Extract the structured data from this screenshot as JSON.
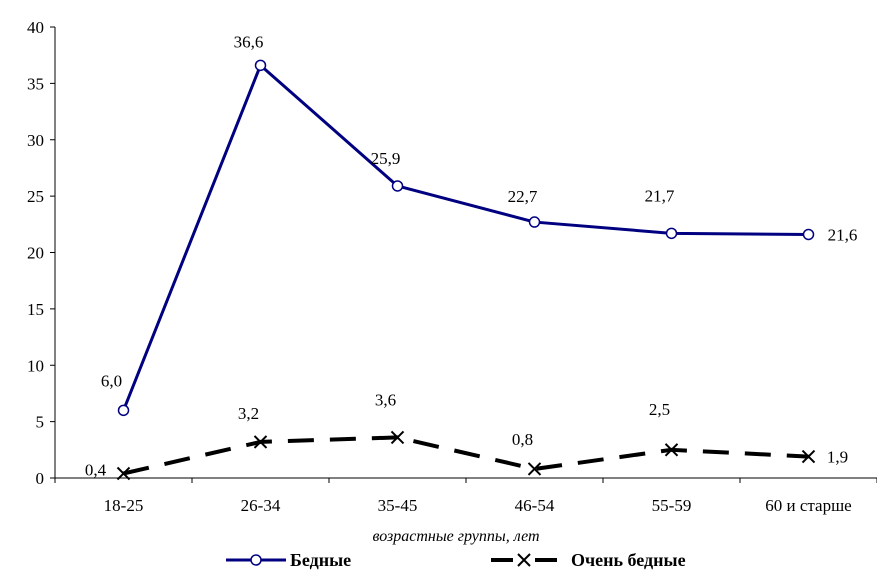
{
  "chart_data": {
    "type": "line",
    "title": "",
    "xlabel": "возрастные группы, лет",
    "ylabel": "",
    "ylim": [
      0,
      40
    ],
    "yticks": [
      "0",
      "5",
      "10",
      "15",
      "20",
      "25",
      "30",
      "35",
      "40"
    ],
    "categories": [
      "18-25",
      "26-34",
      "35-45",
      "46-54",
      "55-59",
      "60  и старше"
    ],
    "legend_position": "bottom",
    "grid": false,
    "series": [
      {
        "name": "Бедные",
        "values": [
          6.0,
          36.6,
          25.9,
          22.7,
          21.7,
          21.6
        ],
        "labels": [
          "6,0",
          "36,6",
          "25,9",
          "22,7",
          "21,7",
          "21,6"
        ],
        "color": "#000080",
        "style": "solid",
        "marker": "circle"
      },
      {
        "name": "Очень бедные",
        "values": [
          0.4,
          3.2,
          3.6,
          0.8,
          2.5,
          1.9
        ],
        "labels": [
          "0,4",
          "3,2",
          "3,6",
          "0,8",
          "2,5",
          "1,9"
        ],
        "color": "#000000",
        "style": "dashed",
        "marker": "x"
      }
    ]
  }
}
